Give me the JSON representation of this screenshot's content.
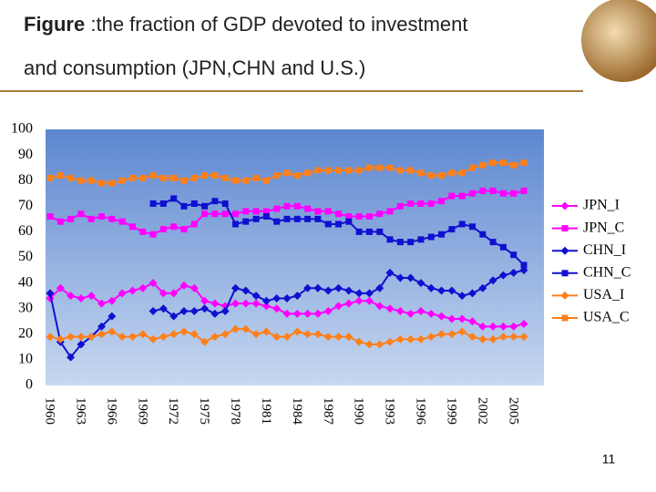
{
  "title": {
    "bold": "Figure",
    "line1": ":the fraction of GDP devoted to investment",
    "line2": "and consumption (JPN,CHN and U.S.)"
  },
  "page_number": "11",
  "chart_data": {
    "type": "line",
    "categories": [
      "1960",
      null,
      null,
      "1963",
      null,
      null,
      "1966",
      null,
      null,
      "1969",
      null,
      null,
      "1972",
      null,
      null,
      "1975",
      null,
      null,
      "1978",
      null,
      null,
      "1981",
      null,
      null,
      "1984",
      null,
      null,
      "1987",
      null,
      null,
      "1990",
      null,
      null,
      "1993",
      null,
      null,
      "1996",
      null,
      null,
      "1999",
      null,
      null,
      "2002",
      null,
      null,
      "2005",
      null
    ],
    "ylim": [
      0,
      100
    ],
    "yticks": [
      0,
      10,
      20,
      30,
      40,
      50,
      60,
      70,
      80,
      90,
      100
    ],
    "grid": false,
    "legend": "right",
    "series": [
      {
        "name": "JPN_I",
        "color": "#ff00ff",
        "marker": "diamond",
        "values": [
          34,
          38,
          35,
          34,
          35,
          32,
          33,
          36,
          37,
          38,
          40,
          36,
          36,
          39,
          38,
          33,
          32,
          31,
          32,
          32,
          32,
          31,
          30,
          28,
          28,
          28,
          28,
          29,
          31,
          32,
          33,
          33,
          31,
          30,
          29,
          28,
          29,
          28,
          27,
          26,
          26,
          25,
          23,
          23,
          23,
          23,
          24
        ]
      },
      {
        "name": "JPN_C",
        "color": "#ff00ff",
        "marker": "square",
        "values": [
          66,
          64,
          65,
          67,
          65,
          66,
          65,
          64,
          62,
          60,
          59,
          61,
          62,
          61,
          63,
          67,
          67,
          67,
          67,
          68,
          68,
          68,
          69,
          70,
          70,
          69,
          68,
          68,
          67,
          66,
          66,
          66,
          67,
          68,
          70,
          71,
          71,
          71,
          72,
          74,
          74,
          75,
          76,
          76,
          75,
          75,
          76
        ]
      },
      {
        "name": "CHN_I",
        "color": "#1010d0",
        "marker": "diamond",
        "values": [
          36,
          17,
          11,
          16,
          19,
          23,
          27,
          null,
          null,
          null,
          29,
          30,
          27,
          29,
          29,
          30,
          28,
          29,
          38,
          37,
          35,
          33,
          34,
          34,
          35,
          38,
          38,
          37,
          38,
          37,
          36,
          36,
          38,
          44,
          42,
          42,
          40,
          38,
          37,
          37,
          35,
          36,
          38,
          41,
          43,
          44,
          45
        ]
      },
      {
        "name": "CHN_C",
        "color": "#1010d0",
        "marker": "square",
        "values": [
          null,
          null,
          null,
          null,
          null,
          null,
          null,
          null,
          null,
          null,
          71,
          71,
          73,
          70,
          71,
          70,
          72,
          71,
          63,
          64,
          65,
          66,
          64,
          65,
          65,
          65,
          65,
          63,
          63,
          64,
          60,
          60,
          60,
          57,
          56,
          56,
          57,
          58,
          59,
          61,
          63,
          62,
          59,
          56,
          54,
          51,
          47
        ]
      },
      {
        "name": "USA_I",
        "color": "#ff7f1a",
        "marker": "diamond",
        "values": [
          19,
          18,
          19,
          19,
          19,
          20,
          21,
          19,
          19,
          20,
          18,
          19,
          20,
          21,
          20,
          17,
          19,
          20,
          22,
          22,
          20,
          21,
          19,
          19,
          21,
          20,
          20,
          19,
          19,
          19,
          17,
          16,
          16,
          17,
          18,
          18,
          18,
          19,
          20,
          20,
          21,
          19,
          18,
          18,
          19,
          19,
          19
        ]
      },
      {
        "name": "USA_C",
        "color": "#ff7f1a",
        "marker": "square",
        "values": [
          81,
          82,
          81,
          80,
          80,
          79,
          79,
          80,
          81,
          81,
          82,
          81,
          81,
          80,
          81,
          82,
          82,
          81,
          80,
          80,
          81,
          80,
          82,
          83,
          82,
          83,
          84,
          84,
          84,
          84,
          84,
          85,
          85,
          85,
          84,
          84,
          83,
          82,
          82,
          83,
          83,
          85,
          86,
          87,
          87,
          86,
          87
        ]
      }
    ]
  }
}
